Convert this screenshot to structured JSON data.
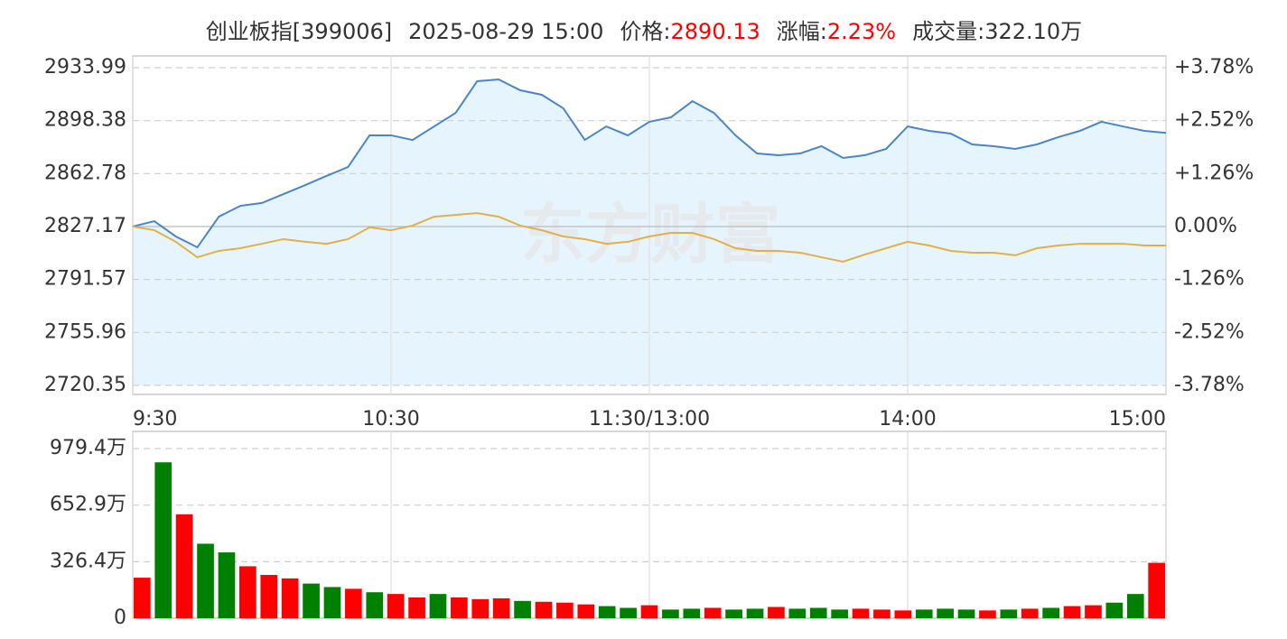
{
  "chart_data": [
    {
      "type": "line",
      "title": "创业板指[399006]",
      "subtitle": "2025-08-29 15:00",
      "stats": [
        {
          "label": "价格:",
          "value": 2890.13,
          "color": "#ff0000"
        },
        {
          "label": "涨幅:",
          "value": 2.23,
          "value_label": "2.23%",
          "color": "#ff0000"
        },
        {
          "label": "成交量:",
          "value": 322.1,
          "value_label": "322.10万",
          "color": "#333333"
        }
      ],
      "watermark": "东方财富",
      "x": [
        0,
        5,
        10,
        15,
        20,
        25,
        30,
        35,
        40,
        45,
        50,
        55,
        60,
        65,
        70,
        75,
        80,
        85,
        90,
        95,
        100,
        105,
        110,
        115,
        120,
        125,
        130,
        135,
        140,
        145,
        150,
        155,
        160,
        165,
        170,
        175,
        180,
        185,
        190,
        195,
        200,
        205,
        210,
        215,
        220,
        225,
        230,
        235,
        240
      ],
      "xlim": [
        0,
        240
      ],
      "xticks": [
        {
          "value": 0,
          "label": "9:30"
        },
        {
          "value": 60,
          "label": "10:30"
        },
        {
          "value": 120,
          "label": "11:30/13:00"
        },
        {
          "value": 180,
          "label": "14:00"
        },
        {
          "value": 240,
          "label": "15:00"
        }
      ],
      "ylim": [
        2720.35,
        2933.99
      ],
      "yticks": [
        2933.99,
        2898.38,
        2862.78,
        2827.17,
        2791.57,
        2755.96,
        2720.35
      ],
      "y2lim": [
        -3.78,
        3.78
      ],
      "y2ticks": [
        {
          "value": 3.78,
          "label": "+3.78%"
        },
        {
          "value": 2.52,
          "label": "+2.52%"
        },
        {
          "value": 1.26,
          "label": "+1.26%"
        },
        {
          "value": 0,
          "label": "0.00%"
        },
        {
          "value": -1.26,
          "label": "-1.26%"
        },
        {
          "value": -2.52,
          "label": "-2.52%"
        },
        {
          "value": -3.78,
          "label": "-3.78%"
        }
      ],
      "up_color": "#ff0000",
      "down_color": "#008000",
      "flat_color": "#333333",
      "area_color": "#e6f4fd",
      "grid": true,
      "series": [
        {
          "color": "#4a86c5",
          "values": [
            2827.2,
            2830.8,
            2820.5,
            2813.2,
            2833.8,
            2841.1,
            2843,
            2849,
            2855,
            2861.2,
            2867.2,
            2888.5,
            2888.5,
            2885.4,
            2894.5,
            2903.6,
            2924.9,
            2926.1,
            2918.8,
            2915.8,
            2906.7,
            2885.4,
            2894.5,
            2888.5,
            2897.6,
            2900.6,
            2911.5,
            2903.6,
            2888.5,
            2876.3,
            2875.1,
            2876.3,
            2881.2,
            2873.3,
            2875.1,
            2879.4,
            2894.5,
            2891.5,
            2889.7,
            2882.4,
            2881.2,
            2879.4,
            2882.4,
            2887.3,
            2891.5,
            2897.6,
            2894.5,
            2891.5,
            2890.13
          ]
        },
        {
          "color": "#e0b04a",
          "values": [
            2827.2,
            2824.7,
            2816.9,
            2806.5,
            2810.8,
            2812.6,
            2815.6,
            2818.7,
            2816.9,
            2815.6,
            2818.7,
            2826.6,
            2824.7,
            2827.8,
            2833.8,
            2835,
            2836.2,
            2833.8,
            2827.8,
            2824.7,
            2820.5,
            2818.7,
            2815.6,
            2816.9,
            2820.5,
            2822.9,
            2822.9,
            2818.7,
            2812.6,
            2810.8,
            2810.8,
            2809.6,
            2806.5,
            2803.5,
            2808.3,
            2812.6,
            2816.9,
            2814.4,
            2810.8,
            2809.6,
            2809.6,
            2807.8,
            2812.6,
            2814.4,
            2815.6,
            2815.6,
            2815.6,
            2814.4,
            2814.4
          ]
        }
      ]
    },
    {
      "type": "bar",
      "x": [
        0,
        5,
        10,
        15,
        20,
        25,
        30,
        35,
        40,
        45,
        50,
        55,
        60,
        65,
        70,
        75,
        80,
        85,
        90,
        95,
        100,
        105,
        110,
        115,
        120,
        125,
        130,
        135,
        140,
        145,
        150,
        155,
        160,
        165,
        170,
        175,
        180,
        185,
        190,
        195,
        200,
        205,
        210,
        215,
        220,
        225,
        230,
        235,
        240
      ],
      "xlim": [
        0,
        240
      ],
      "ylim": [
        0,
        979.4
      ],
      "yticks": [
        {
          "value": 979.4,
          "label": "979.4万"
        },
        {
          "value": 652.9,
          "label": "652.9万"
        },
        {
          "value": 326.4,
          "label": "326.4万"
        },
        0
      ],
      "grid": true,
      "values": [
        234,
        900,
        600,
        430,
        380,
        300,
        250,
        230,
        200,
        180,
        170,
        150,
        140,
        120,
        140,
        120,
        110,
        115,
        100,
        95,
        90,
        80,
        70,
        60,
        75,
        50,
        55,
        60,
        50,
        55,
        65,
        55,
        60,
        50,
        55,
        50,
        45,
        50,
        55,
        50,
        45,
        50,
        55,
        60,
        70,
        75,
        90,
        140,
        320
      ],
      "bar_colors": [
        "#ff0000",
        "#008000",
        "#ff0000",
        "#008000",
        "#008000",
        "#ff0000",
        "#ff0000",
        "#ff0000",
        "#008000",
        "#008000",
        "#ff0000",
        "#008000",
        "#ff0000",
        "#ff0000",
        "#008000",
        "#ff0000",
        "#ff0000",
        "#ff0000",
        "#008000",
        "#ff0000",
        "#ff0000",
        "#ff0000",
        "#008000",
        "#008000",
        "#ff0000",
        "#008000",
        "#008000",
        "#ff0000",
        "#008000",
        "#008000",
        "#ff0000",
        "#008000",
        "#008000",
        "#008000",
        "#ff0000",
        "#ff0000",
        "#ff0000",
        "#008000",
        "#008000",
        "#008000",
        "#ff0000",
        "#008000",
        "#ff0000",
        "#008000",
        "#ff0000",
        "#ff0000",
        "#008000",
        "#008000",
        "#ff0000"
      ]
    }
  ]
}
